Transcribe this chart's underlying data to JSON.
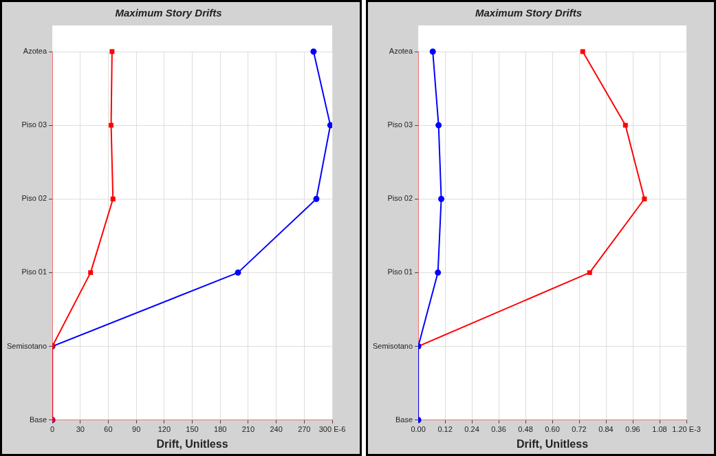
{
  "chart_data": [
    {
      "type": "line",
      "title": "Maximum Story Drifts",
      "xlabel": "Drift, Unitless",
      "orientation": "horizontal",
      "categories": [
        "Azotea",
        "Piso 03",
        "Piso 02",
        "Piso 01",
        "Semisotano",
        "Base"
      ],
      "series": [
        {
          "color": "#ff0000",
          "marker": "square",
          "values": [
            64,
            63,
            65,
            41,
            0,
            0
          ]
        },
        {
          "color": "#0000ff",
          "marker": "circle",
          "values": [
            280,
            298,
            283,
            199,
            0,
            0
          ]
        }
      ],
      "xlim": [
        0,
        300
      ],
      "xticks": [
        0,
        30,
        60,
        90,
        120,
        150,
        180,
        210,
        240,
        270,
        {
          "value": 300,
          "label": "300 E-6"
        }
      ],
      "grid": true,
      "legend": false,
      "line_style": "solid"
    },
    {
      "type": "line",
      "title": "Maximum Story Drifts",
      "xlabel": "Drift, Unitless",
      "orientation": "horizontal",
      "categories": [
        "Azotea",
        "Piso 03",
        "Piso 02",
        "Piso 01",
        "Semisotano",
        "Base"
      ],
      "series": [
        {
          "color": "#0000ff",
          "marker": "circle",
          "values": [
            0.065,
            0.091,
            0.103,
            0.088,
            0,
            0
          ]
        },
        {
          "color": "#ff0000",
          "marker": "square",
          "values": [
            0.736,
            0.927,
            1.012,
            0.767,
            0,
            0
          ]
        }
      ],
      "xlim": [
        0,
        1.2
      ],
      "xticks": [
        {
          "value": 0,
          "label": "0.00"
        },
        0.12,
        0.24,
        0.36,
        0.48,
        {
          "value": 0.6,
          "label": "0.60"
        },
        0.72,
        0.84,
        0.96,
        1.08,
        {
          "value": 1.2,
          "label": "1.20 E-3"
        }
      ],
      "grid": true,
      "legend": false,
      "line_style": "solid"
    }
  ]
}
